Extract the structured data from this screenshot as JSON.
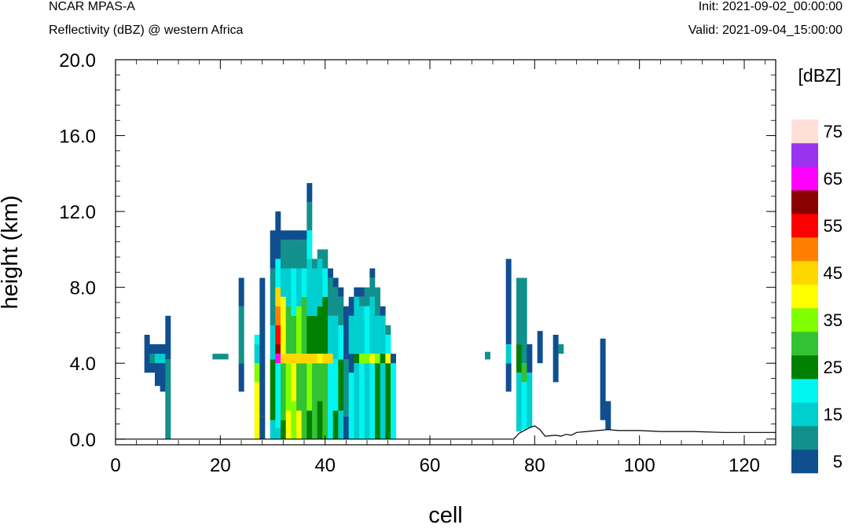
{
  "header": {
    "model": "NCAR MPAS-A",
    "field": "Reflectivity (dBZ) @ western Africa",
    "init_label": "Init: 2021-09-02_00:00:00",
    "valid_label": "Valid: 2021-09-04_15:00:00"
  },
  "chart_data": {
    "type": "heatmap",
    "title": "Reflectivity (dBZ) @ western Africa",
    "xlabel": "cell",
    "ylabel": "height (km)",
    "xlim": [
      0,
      126
    ],
    "ylim": [
      -0.3,
      20.0
    ],
    "xticks": [
      0,
      20,
      40,
      60,
      80,
      100,
      120
    ],
    "xtick_labels": [
      "0",
      "20",
      "40",
      "60",
      "80",
      "100",
      "120"
    ],
    "yticks": [
      0,
      4,
      8,
      12,
      16,
      20
    ],
    "ytick_labels": [
      "0.0",
      "4.0",
      "8.0",
      "12.0",
      "16.0",
      "20.0"
    ],
    "grid": false,
    "colorbar": {
      "unit_label": "[dBZ]",
      "levels": [
        5,
        10,
        15,
        20,
        25,
        30,
        35,
        40,
        45,
        50,
        55,
        60,
        65,
        70,
        75
      ],
      "labeled_levels": [
        "5",
        "15",
        "25",
        "35",
        "45",
        "55",
        "65",
        "75"
      ],
      "colors": [
        "#0f4f8f",
        "#12908c",
        "#00cfcf",
        "#00f5f0",
        "#008000",
        "#33c233",
        "#7fff00",
        "#ffff00",
        "#ffd700",
        "#ff8000",
        "#ff0000",
        "#8b0000",
        "#ff00ff",
        "#9933ee",
        "#ffe0d8"
      ]
    },
    "terrain_km": [
      [
        0,
        0
      ],
      [
        76,
        0
      ],
      [
        77,
        0.3
      ],
      [
        79,
        0.6
      ],
      [
        80,
        0.7
      ],
      [
        81,
        0.5
      ],
      [
        82,
        0.15
      ],
      [
        84,
        0.2
      ],
      [
        85,
        0.15
      ],
      [
        86,
        0.25
      ],
      [
        87,
        0.2
      ],
      [
        88,
        0.35
      ],
      [
        90,
        0.4
      ],
      [
        92,
        0.45
      ],
      [
        94,
        0.5
      ],
      [
        96,
        0.45
      ],
      [
        100,
        0.45
      ],
      [
        104,
        0.4
      ],
      [
        110,
        0.4
      ],
      [
        116,
        0.35
      ],
      [
        122,
        0.35
      ],
      [
        126,
        0.35
      ]
    ],
    "columns": [
      {
        "cell": 6,
        "segments": [
          [
            3.5,
            5.5,
            5
          ]
        ]
      },
      {
        "cell": 7,
        "segments": [
          [
            3.5,
            5.0,
            5
          ],
          [
            4.0,
            4.5,
            10
          ]
        ]
      },
      {
        "cell": 8,
        "segments": [
          [
            2.8,
            5.0,
            5
          ],
          [
            4.0,
            4.5,
            15
          ]
        ]
      },
      {
        "cell": 9,
        "segments": [
          [
            2.5,
            5.0,
            5
          ],
          [
            4.0,
            4.5,
            15
          ]
        ]
      },
      {
        "cell": 10,
        "segments": [
          [
            0,
            4.2,
            10
          ],
          [
            4.2,
            6.5,
            5
          ]
        ]
      },
      {
        "cell": 19,
        "segments": [
          [
            4.2,
            4.5,
            10
          ]
        ]
      },
      {
        "cell": 20,
        "segments": [
          [
            4.2,
            4.5,
            10
          ]
        ]
      },
      {
        "cell": 21,
        "segments": [
          [
            4.2,
            4.5,
            10
          ]
        ]
      },
      {
        "cell": 24,
        "segments": [
          [
            2.5,
            4.0,
            5
          ],
          [
            4.0,
            7.0,
            10
          ],
          [
            7.0,
            8.5,
            5
          ]
        ]
      },
      {
        "cell": 27,
        "segments": [
          [
            0,
            3.0,
            40
          ],
          [
            3.0,
            4.0,
            35
          ],
          [
            4.0,
            5.0,
            15
          ],
          [
            5.0,
            5.5,
            20
          ]
        ]
      },
      {
        "cell": 28,
        "segments": [
          [
            0,
            1.2,
            5
          ],
          [
            1.2,
            8.5,
            5
          ]
        ]
      },
      {
        "cell": 30,
        "segments": [
          [
            0,
            1.0,
            15
          ],
          [
            1.0,
            4.2,
            25
          ],
          [
            4.2,
            6.0,
            15
          ],
          [
            6.0,
            9.0,
            10
          ],
          [
            9.0,
            11.0,
            5
          ]
        ]
      },
      {
        "cell": 31,
        "segments": [
          [
            0,
            0.6,
            15
          ],
          [
            0.6,
            4.0,
            20
          ],
          [
            4.0,
            4.5,
            65
          ],
          [
            4.5,
            5.0,
            60
          ],
          [
            5.0,
            6.0,
            55
          ],
          [
            6.0,
            7.0,
            50
          ],
          [
            7.0,
            8.0,
            45
          ],
          [
            8.0,
            9.5,
            20
          ],
          [
            9.5,
            12.0,
            5
          ]
        ]
      },
      {
        "cell": 32,
        "segments": [
          [
            0,
            1.0,
            25
          ],
          [
            1.0,
            4.0,
            30
          ],
          [
            4.0,
            4.5,
            45
          ],
          [
            4.5,
            7.5,
            40
          ],
          [
            7.5,
            9.0,
            15
          ],
          [
            9.0,
            10.5,
            10
          ],
          [
            10.5,
            11.0,
            5
          ]
        ]
      },
      {
        "cell": 33,
        "segments": [
          [
            0,
            1.5,
            40
          ],
          [
            1.5,
            4.0,
            35
          ],
          [
            4.0,
            4.5,
            45
          ],
          [
            4.5,
            7.0,
            30
          ],
          [
            7.0,
            9.0,
            15
          ],
          [
            9.0,
            10.5,
            10
          ],
          [
            10.5,
            11.0,
            5
          ]
        ]
      },
      {
        "cell": 34,
        "segments": [
          [
            0,
            2.0,
            35
          ],
          [
            2.0,
            4.0,
            40
          ],
          [
            4.0,
            4.5,
            45
          ],
          [
            4.5,
            6.5,
            30
          ],
          [
            6.5,
            9.0,
            20
          ],
          [
            9.0,
            10.5,
            10
          ],
          [
            10.5,
            11.0,
            5
          ]
        ]
      },
      {
        "cell": 35,
        "segments": [
          [
            0,
            1.5,
            40
          ],
          [
            1.5,
            4.0,
            30
          ],
          [
            4.0,
            4.5,
            45
          ],
          [
            4.5,
            7.0,
            35
          ],
          [
            7.0,
            9.0,
            15
          ],
          [
            9.0,
            10.5,
            10
          ],
          [
            10.5,
            11.0,
            5
          ]
        ]
      },
      {
        "cell": 36,
        "segments": [
          [
            0,
            2.0,
            30
          ],
          [
            2.0,
            4.0,
            30
          ],
          [
            4.0,
            4.5,
            45
          ],
          [
            4.5,
            7.5,
            30
          ],
          [
            7.5,
            9.0,
            20
          ],
          [
            9.0,
            10.5,
            10
          ],
          [
            10.5,
            11.0,
            5
          ]
        ]
      },
      {
        "cell": 37,
        "segments": [
          [
            0,
            1.5,
            25
          ],
          [
            1.5,
            4.0,
            35
          ],
          [
            4.0,
            4.5,
            45
          ],
          [
            4.5,
            6.5,
            25
          ],
          [
            6.5,
            9.5,
            15
          ],
          [
            9.5,
            11.0,
            20
          ],
          [
            11.0,
            12.5,
            10
          ],
          [
            12.5,
            13.5,
            5
          ]
        ]
      },
      {
        "cell": 38,
        "segments": [
          [
            0,
            1.5,
            30
          ],
          [
            1.5,
            4.0,
            30
          ],
          [
            4.0,
            4.5,
            45
          ],
          [
            4.5,
            6.5,
            25
          ],
          [
            6.5,
            9.0,
            15
          ],
          [
            9.0,
            9.5,
            10
          ]
        ]
      },
      {
        "cell": 39,
        "segments": [
          [
            0,
            2.0,
            25
          ],
          [
            2.0,
            4.0,
            30
          ],
          [
            4.0,
            4.5,
            40
          ],
          [
            4.5,
            7.0,
            25
          ],
          [
            7.0,
            9.5,
            15
          ],
          [
            9.5,
            10.0,
            10
          ]
        ]
      },
      {
        "cell": 40,
        "segments": [
          [
            0,
            1.5,
            30
          ],
          [
            1.5,
            4.0,
            30
          ],
          [
            4.0,
            4.5,
            45
          ],
          [
            4.5,
            7.5,
            25
          ],
          [
            7.5,
            9.0,
            20
          ],
          [
            9.0,
            10.0,
            10
          ]
        ]
      },
      {
        "cell": 41,
        "segments": [
          [
            0,
            4.0,
            20
          ],
          [
            4.0,
            4.5,
            45
          ],
          [
            4.5,
            6.5,
            15
          ],
          [
            6.5,
            8.5,
            10
          ],
          [
            8.5,
            9.0,
            5
          ]
        ]
      },
      {
        "cell": 42,
        "segments": [
          [
            0,
            1.5,
            25
          ],
          [
            1.5,
            4.2,
            20
          ],
          [
            4.2,
            6.5,
            15
          ],
          [
            6.5,
            8.0,
            10
          ],
          [
            8.0,
            8.5,
            5
          ]
        ]
      },
      {
        "cell": 43,
        "segments": [
          [
            0,
            1.5,
            15
          ],
          [
            1.5,
            4.2,
            25
          ],
          [
            4.2,
            6.0,
            20
          ],
          [
            6.0,
            7.5,
            10
          ],
          [
            7.5,
            8.0,
            5
          ]
        ]
      },
      {
        "cell": 44,
        "segments": [
          [
            0,
            1.2,
            5
          ],
          [
            1.2,
            4.2,
            10
          ],
          [
            4.2,
            7.0,
            5
          ]
        ]
      },
      {
        "cell": 45,
        "segments": [
          [
            0,
            3.5,
            20
          ],
          [
            3.5,
            4.5,
            5
          ],
          [
            4.5,
            6.5,
            15
          ],
          [
            6.5,
            7.5,
            5
          ]
        ]
      },
      {
        "cell": 46,
        "segments": [
          [
            0,
            4.0,
            15
          ],
          [
            4.0,
            4.5,
            25
          ],
          [
            4.5,
            7.5,
            15
          ],
          [
            7.5,
            8.0,
            5
          ]
        ]
      },
      {
        "cell": 47,
        "segments": [
          [
            0,
            4.0,
            20
          ],
          [
            4.0,
            4.5,
            35
          ],
          [
            4.5,
            7.0,
            15
          ],
          [
            7.0,
            7.5,
            10
          ],
          [
            7.5,
            8.0,
            5
          ]
        ]
      },
      {
        "cell": 48,
        "segments": [
          [
            0,
            4.0,
            15
          ],
          [
            4.0,
            4.5,
            35
          ],
          [
            4.5,
            7.0,
            20
          ],
          [
            7.0,
            8.0,
            10
          ]
        ]
      },
      {
        "cell": 49,
        "segments": [
          [
            0,
            4.0,
            20
          ],
          [
            4.0,
            4.5,
            40
          ],
          [
            4.5,
            7.5,
            15
          ],
          [
            7.5,
            8.5,
            10
          ],
          [
            8.5,
            9.0,
            5
          ]
        ]
      },
      {
        "cell": 50,
        "segments": [
          [
            0,
            4.0,
            25
          ],
          [
            4.0,
            4.5,
            35
          ],
          [
            4.5,
            6.5,
            15
          ],
          [
            6.5,
            8.0,
            10
          ]
        ]
      },
      {
        "cell": 51,
        "segments": [
          [
            0,
            4.0,
            15
          ],
          [
            4.0,
            4.5,
            25
          ],
          [
            4.5,
            6.5,
            15
          ],
          [
            6.5,
            7.0,
            5
          ]
        ]
      },
      {
        "cell": 52,
        "segments": [
          [
            0,
            4.0,
            25
          ],
          [
            4.0,
            4.5,
            40
          ],
          [
            4.5,
            5.5,
            20
          ],
          [
            5.5,
            6.0,
            10
          ]
        ]
      },
      {
        "cell": 53,
        "segments": [
          [
            0,
            4.0,
            20
          ],
          [
            4.0,
            4.5,
            5
          ]
        ]
      },
      {
        "cell": 71,
        "segments": [
          [
            4.2,
            4.6,
            10
          ]
        ]
      },
      {
        "cell": 75,
        "segments": [
          [
            2.5,
            4.0,
            5
          ],
          [
            4.0,
            5.0,
            15
          ],
          [
            5.0,
            9.5,
            5
          ]
        ]
      },
      {
        "cell": 77,
        "segments": [
          [
            0.4,
            3.5,
            15
          ],
          [
            3.5,
            5.0,
            25
          ],
          [
            5.0,
            8.5,
            10
          ]
        ]
      },
      {
        "cell": 78,
        "segments": [
          [
            0.5,
            3.0,
            20
          ],
          [
            3.0,
            4.0,
            30
          ],
          [
            4.0,
            5.0,
            10
          ],
          [
            5.0,
            8.5,
            10
          ]
        ]
      },
      {
        "cell": 79,
        "segments": [
          [
            0.6,
            3.5,
            15
          ],
          [
            3.5,
            5.0,
            5
          ]
        ]
      },
      {
        "cell": 81,
        "segments": [
          [
            4.0,
            5.7,
            5
          ]
        ]
      },
      {
        "cell": 84,
        "segments": [
          [
            3.0,
            5.5,
            5
          ]
        ]
      },
      {
        "cell": 85,
        "segments": [
          [
            4.5,
            5.0,
            10
          ]
        ]
      },
      {
        "cell": 93,
        "segments": [
          [
            1.0,
            5.3,
            5
          ]
        ]
      },
      {
        "cell": 94,
        "segments": [
          [
            0.5,
            2.0,
            5
          ]
        ]
      }
    ]
  }
}
